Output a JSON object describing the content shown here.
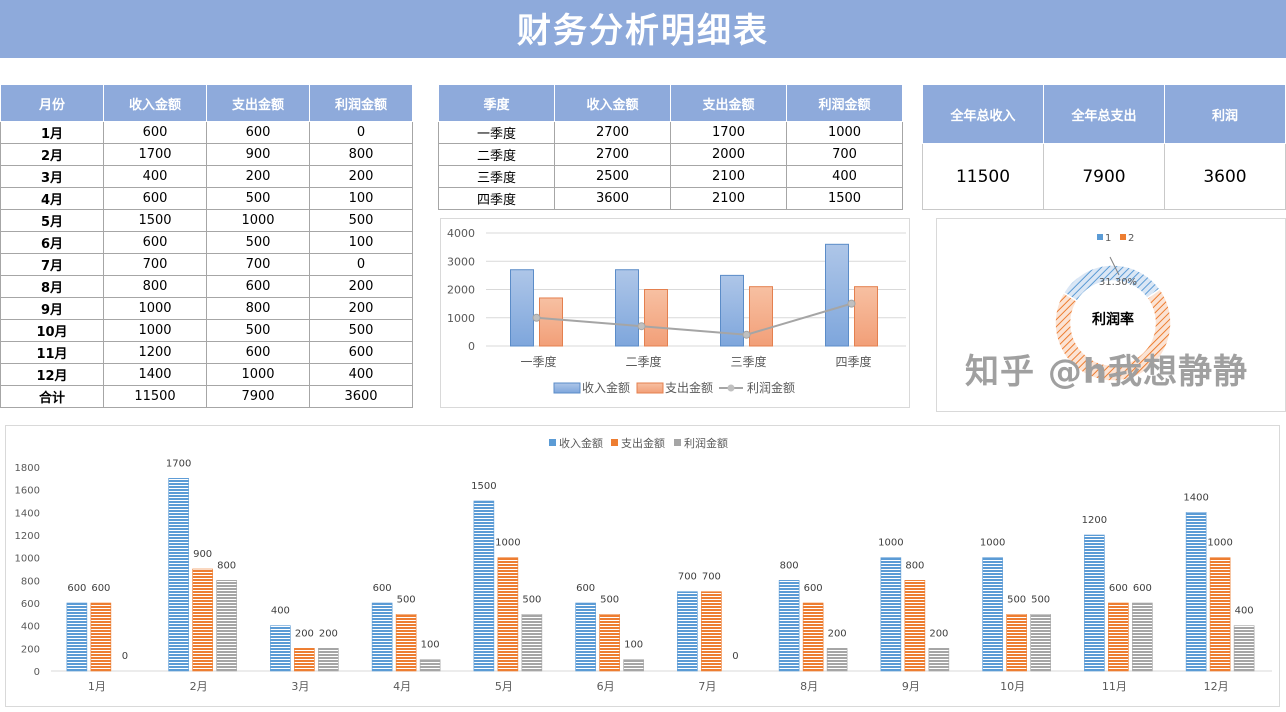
{
  "title": "财务分析明细表",
  "monthly": {
    "headers": [
      "月份",
      "收入金额",
      "支出金额",
      "利润金额"
    ],
    "rows": [
      [
        "1月",
        "600",
        "600",
        "0"
      ],
      [
        "2月",
        "1700",
        "900",
        "800"
      ],
      [
        "3月",
        "400",
        "200",
        "200"
      ],
      [
        "4月",
        "600",
        "500",
        "100"
      ],
      [
        "5月",
        "1500",
        "1000",
        "500"
      ],
      [
        "6月",
        "600",
        "500",
        "100"
      ],
      [
        "7月",
        "700",
        "700",
        "0"
      ],
      [
        "8月",
        "800",
        "600",
        "200"
      ],
      [
        "9月",
        "1000",
        "800",
        "200"
      ],
      [
        "10月",
        "1000",
        "500",
        "500"
      ],
      [
        "11月",
        "1200",
        "600",
        "600"
      ],
      [
        "12月",
        "1400",
        "1000",
        "400"
      ],
      [
        "合计",
        "11500",
        "7900",
        "3600"
      ]
    ]
  },
  "quarterly": {
    "headers": [
      "季度",
      "收入金额",
      "支出金额",
      "利润金额"
    ],
    "rows": [
      [
        "一季度",
        "2700",
        "1700",
        "1000"
      ],
      [
        "二季度",
        "2700",
        "2000",
        "700"
      ],
      [
        "三季度",
        "2500",
        "2100",
        "400"
      ],
      [
        "四季度",
        "3600",
        "2100",
        "1500"
      ]
    ]
  },
  "summary": {
    "headers": [
      "全年总收入",
      "全年总支出",
      "利润"
    ],
    "values": [
      "11500",
      "7900",
      "3600"
    ]
  },
  "donut": {
    "legend": [
      "1",
      "2"
    ],
    "label": "31.30%",
    "center": "利润率",
    "fraction": 0.313
  },
  "watermark": "知乎 @h我想静静",
  "colors": {
    "blue": "#5b9bd5",
    "orange": "#ed7d31",
    "gray": "#a5a5a5",
    "header": "#8eaadb"
  },
  "chart_data": [
    {
      "type": "bar",
      "title": "",
      "categories": [
        "一季度",
        "二季度",
        "三季度",
        "四季度"
      ],
      "series": [
        {
          "name": "收入金额",
          "values": [
            2700,
            2700,
            2500,
            3600
          ]
        },
        {
          "name": "支出金额",
          "values": [
            1700,
            2000,
            2100,
            2100
          ]
        },
        {
          "name": "利润金额",
          "type": "line",
          "values": [
            1000,
            700,
            400,
            1500
          ]
        }
      ],
      "ylim": [
        0,
        4000
      ],
      "yticks": [
        0,
        1000,
        2000,
        3000,
        4000
      ],
      "legend": "bottom"
    },
    {
      "type": "bar",
      "title": "",
      "categories": [
        "1月",
        "2月",
        "3月",
        "4月",
        "5月",
        "6月",
        "7月",
        "8月",
        "9月",
        "10月",
        "11月",
        "12月"
      ],
      "series": [
        {
          "name": "收入金额",
          "values": [
            600,
            1700,
            400,
            600,
            1500,
            600,
            700,
            800,
            1000,
            1000,
            1200,
            1400
          ]
        },
        {
          "name": "支出金额",
          "values": [
            600,
            900,
            200,
            500,
            1000,
            500,
            700,
            600,
            800,
            500,
            600,
            1000
          ]
        },
        {
          "name": "利润金额",
          "values": [
            0,
            800,
            200,
            100,
            500,
            100,
            0,
            200,
            200,
            500,
            600,
            400
          ]
        }
      ],
      "ylim": [
        0,
        1800
      ],
      "yticks": [
        0,
        200,
        400,
        600,
        800,
        1000,
        1200,
        1400,
        1600,
        1800
      ],
      "legend": "top"
    }
  ]
}
